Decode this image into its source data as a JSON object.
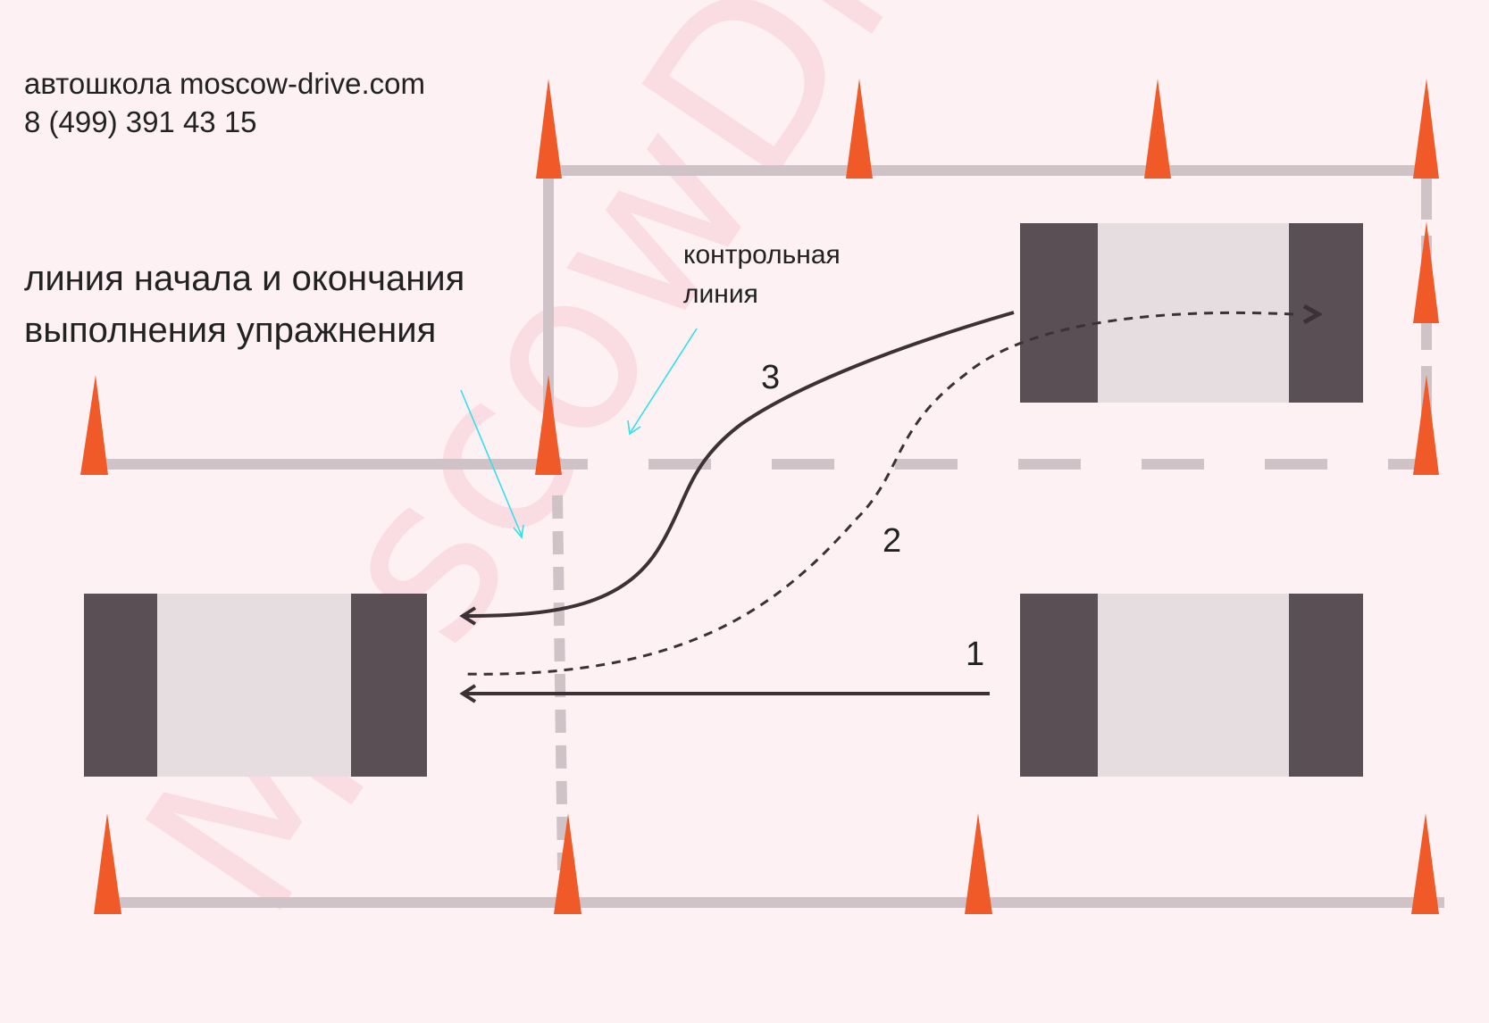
{
  "header": {
    "line1": "автошкола moscow-drive.com",
    "line2": "8 (499) 391 43 15"
  },
  "labels": {
    "start_line_1": "линия начала и окончания",
    "start_line_2": "выполнения упражнения",
    "control_line_1": "контрольная",
    "control_line_2": "линия",
    "path_1": "1",
    "path_2": "2",
    "path_3": "3"
  },
  "watermark": "MoscowDrive",
  "colors": {
    "background": "#fdf1f4",
    "line": "#cfc3c8",
    "cone": "#f05a28",
    "car_dark": "#5a4f54",
    "car_light": "#e6dde1",
    "path": "#3c3236",
    "pointer": "#33e0e8",
    "watermark": "#f4b9c6"
  }
}
